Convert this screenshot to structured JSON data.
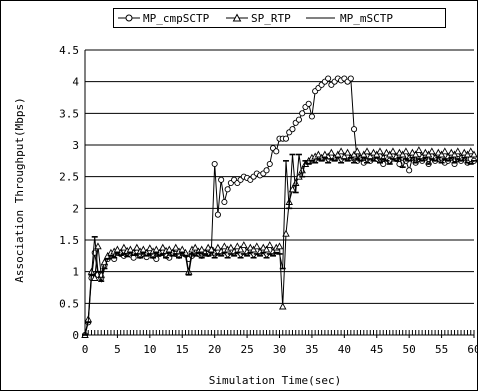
{
  "chart_data": {
    "type": "line",
    "title": "",
    "xlabel": "Simulation Time(sec)",
    "ylabel": "Association Throughput(Mbps)",
    "xlim": [
      0,
      60
    ],
    "ylim": [
      0,
      4.5
    ],
    "xticks": [
      "0",
      "5",
      "10",
      "15",
      "20",
      "25",
      "30",
      "35",
      "40",
      "45",
      "50",
      "55",
      "60"
    ],
    "yticks": [
      "0",
      "0.5",
      "1",
      "1.5",
      "2",
      "2.5",
      "3",
      "3.5",
      "4",
      "4.5"
    ],
    "grid": "horizontal",
    "legend_position": "top",
    "series": [
      {
        "name": "MP_cmpSCTP",
        "marker": "circle",
        "x": [
          0,
          0.5,
          1,
          1.5,
          2,
          2.5,
          3,
          3.5,
          4,
          4.5,
          5,
          5.5,
          6,
          6.5,
          7,
          7.5,
          8,
          8.5,
          9,
          9.5,
          10,
          10.5,
          11,
          11.5,
          12,
          12.5,
          13,
          13.5,
          14,
          14.5,
          15,
          15.5,
          16,
          16.5,
          17,
          17.5,
          18,
          18.5,
          19,
          19.5,
          20,
          20.5,
          21,
          21.5,
          22,
          22.5,
          23,
          23.5,
          24,
          24.5,
          25,
          25.5,
          26,
          26.5,
          27,
          27.5,
          28,
          28.5,
          29,
          29.5,
          30,
          30.5,
          31,
          31.5,
          32,
          32.5,
          33,
          33.5,
          34,
          34.5,
          35,
          35.5,
          36,
          36.5,
          37,
          37.5,
          38,
          38.5,
          39,
          39.5,
          40,
          40.5,
          41,
          41.5,
          42,
          42.5,
          43,
          43.5,
          44,
          44.5,
          45,
          45.5,
          46,
          46.5,
          47,
          47.5,
          48,
          48.5,
          49,
          49.5,
          50,
          50.5,
          51,
          51.5,
          52,
          52.5,
          53,
          53.5,
          54,
          54.5,
          55,
          55.5,
          56,
          56.5,
          57,
          57.5,
          58,
          58.5,
          59,
          59.5,
          60
        ],
        "values": [
          0,
          0.2,
          0.9,
          1.3,
          0.95,
          0.9,
          1.1,
          1.2,
          1.25,
          1.2,
          1.3,
          1.28,
          1.25,
          1.3,
          1.27,
          1.22,
          1.3,
          1.25,
          1.28,
          1.23,
          1.3,
          1.25,
          1.2,
          1.28,
          1.3,
          1.25,
          1.22,
          1.3,
          1.28,
          1.25,
          1.3,
          1.27,
          1.2,
          1.25,
          1.3,
          1.28,
          1.25,
          1.3,
          1.28,
          1.35,
          2.7,
          1.9,
          2.45,
          2.1,
          2.3,
          2.4,
          2.45,
          2.4,
          2.45,
          2.5,
          2.48,
          2.45,
          2.5,
          2.55,
          2.52,
          2.55,
          2.6,
          2.7,
          2.95,
          2.9,
          3.1,
          3.1,
          3.1,
          3.2,
          3.25,
          3.35,
          3.4,
          3.5,
          3.6,
          3.65,
          3.45,
          3.85,
          3.9,
          3.95,
          4.0,
          4.05,
          3.95,
          4.0,
          4.05,
          4.02,
          4.05,
          4.0,
          4.05,
          3.25,
          2.75,
          2.8,
          2.72,
          2.82,
          2.75,
          2.8,
          2.78,
          2.82,
          2.7,
          2.8,
          2.75,
          2.82,
          2.78,
          2.7,
          2.8,
          2.75,
          2.6,
          2.8,
          2.72,
          2.78,
          2.75,
          2.8,
          2.7,
          2.82,
          2.75,
          2.78,
          2.8,
          2.72,
          2.75,
          2.8,
          2.7,
          2.78,
          2.75,
          2.8,
          2.72,
          2.78,
          2.75
        ]
      },
      {
        "name": "SP_RTP",
        "marker": "triangle",
        "x": [
          0,
          0.5,
          1,
          1.5,
          2,
          2.5,
          3,
          3.5,
          4,
          4.5,
          5,
          5.5,
          6,
          6.5,
          7,
          7.5,
          8,
          8.5,
          9,
          9.5,
          10,
          10.5,
          11,
          11.5,
          12,
          12.5,
          13,
          13.5,
          14,
          14.5,
          15,
          15.5,
          16,
          16.5,
          17,
          17.5,
          18,
          18.5,
          19,
          19.5,
          20,
          20.5,
          21,
          21.5,
          22,
          22.5,
          23,
          23.5,
          24,
          24.5,
          25,
          25.5,
          26,
          26.5,
          27,
          27.5,
          28,
          28.5,
          29,
          29.5,
          30,
          30.5,
          31,
          31.5,
          32,
          32.5,
          33,
          33.5,
          34,
          34.5,
          35,
          35.5,
          36,
          36.5,
          37,
          37.5,
          38,
          38.5,
          39,
          39.5,
          40,
          40.5,
          41,
          41.5,
          42,
          42.5,
          43,
          43.5,
          44,
          44.5,
          45,
          45.5,
          46,
          46.5,
          47,
          47.5,
          48,
          48.5,
          49,
          49.5,
          50,
          50.5,
          51,
          51.5,
          52,
          52.5,
          53,
          53.5,
          54,
          54.5,
          55,
          55.5,
          56,
          56.5,
          57,
          57.5,
          58,
          58.5,
          59,
          59.5,
          60
        ],
        "values": [
          0,
          0.25,
          1.0,
          0.9,
          1.4,
          0.95,
          1.15,
          1.25,
          1.3,
          1.32,
          1.35,
          1.3,
          1.38,
          1.33,
          1.35,
          1.3,
          1.38,
          1.32,
          1.35,
          1.3,
          1.37,
          1.32,
          1.35,
          1.3,
          1.38,
          1.33,
          1.35,
          1.3,
          1.38,
          1.32,
          1.35,
          1.3,
          1.0,
          1.35,
          1.38,
          1.32,
          1.35,
          1.3,
          1.38,
          1.35,
          1.3,
          1.38,
          1.32,
          1.4,
          1.35,
          1.38,
          1.32,
          1.4,
          1.35,
          1.42,
          1.32,
          1.38,
          1.35,
          1.4,
          1.32,
          1.38,
          1.35,
          1.42,
          1.32,
          1.38,
          1.4,
          0.45,
          1.6,
          2.1,
          2.3,
          2.4,
          2.5,
          2.6,
          2.7,
          2.75,
          2.8,
          2.82,
          2.85,
          2.8,
          2.85,
          2.82,
          2.88,
          2.8,
          2.85,
          2.9,
          2.82,
          2.88,
          2.8,
          2.85,
          2.9,
          2.8,
          2.85,
          2.9,
          2.82,
          2.88,
          2.85,
          2.9,
          2.8,
          2.88,
          2.85,
          2.9,
          2.82,
          2.88,
          2.85,
          2.9,
          2.8,
          2.88,
          2.85,
          2.92,
          2.82,
          2.88,
          2.85,
          2.9,
          2.8,
          2.88,
          2.85,
          2.9,
          2.82,
          2.88,
          2.85,
          2.9,
          2.8,
          2.88,
          2.85,
          2.9,
          2.85
        ]
      },
      {
        "name": "MP_mSCTP",
        "marker": "dash",
        "x": [
          0,
          0.5,
          1,
          1.5,
          2,
          2.5,
          3,
          3.5,
          4,
          4.5,
          5,
          5.5,
          6,
          6.5,
          7,
          7.5,
          8,
          8.5,
          9,
          9.5,
          10,
          10.5,
          11,
          11.5,
          12,
          12.5,
          13,
          13.5,
          14,
          14.5,
          15,
          15.5,
          16,
          16.5,
          17,
          17.5,
          18,
          18.5,
          19,
          19.5,
          20,
          20.5,
          21,
          21.5,
          22,
          22.5,
          23,
          23.5,
          24,
          24.5,
          25,
          25.5,
          26,
          26.5,
          27,
          27.5,
          28,
          28.5,
          29,
          29.5,
          30,
          30.5,
          31,
          31.5,
          32,
          32.5,
          33,
          33.5,
          34,
          34.5,
          35,
          35.5,
          36,
          36.5,
          37,
          37.5,
          38,
          38.5,
          39,
          39.5,
          40,
          40.5,
          41,
          41.5,
          42,
          42.5,
          43,
          43.5,
          44,
          44.5,
          45,
          45.5,
          46,
          46.5,
          47,
          47.5,
          48,
          48.5,
          49,
          49.5,
          50,
          50.5,
          51,
          51.5,
          52,
          52.5,
          53,
          53.5,
          54,
          54.5,
          55,
          55.5,
          56,
          56.5,
          57,
          57.5,
          58,
          58.5,
          59,
          59.5,
          60
        ],
        "values": [
          0,
          0.2,
          0.95,
          1.55,
          1.0,
          0.85,
          1.05,
          1.2,
          1.25,
          1.22,
          1.3,
          1.26,
          1.28,
          1.24,
          1.3,
          1.26,
          1.28,
          1.22,
          1.3,
          1.25,
          1.28,
          1.22,
          1.3,
          1.26,
          1.28,
          1.22,
          1.3,
          1.25,
          1.28,
          1.22,
          1.3,
          1.25,
          0.95,
          1.28,
          1.25,
          1.3,
          1.22,
          1.28,
          1.25,
          1.3,
          1.22,
          1.28,
          1.25,
          1.3,
          1.22,
          1.28,
          1.25,
          1.3,
          1.22,
          1.28,
          1.25,
          1.3,
          1.22,
          1.28,
          1.25,
          1.3,
          1.22,
          1.28,
          1.25,
          1.3,
          1.28,
          1.05,
          2.75,
          2.0,
          2.85,
          2.25,
          2.85,
          2.5,
          2.75,
          2.7,
          2.75,
          2.72,
          2.78,
          2.75,
          2.8,
          2.72,
          2.78,
          2.75,
          2.8,
          2.72,
          2.78,
          2.75,
          2.8,
          2.72,
          2.78,
          2.75,
          2.8,
          2.72,
          2.78,
          2.75,
          2.8,
          2.72,
          2.78,
          2.75,
          2.7,
          2.78,
          2.75,
          2.8,
          2.65,
          2.78,
          2.75,
          2.8,
          2.72,
          2.78,
          2.75,
          2.8,
          2.7,
          2.78,
          2.75,
          2.8,
          2.72,
          2.78,
          2.75,
          2.8,
          2.72,
          2.78,
          2.75,
          2.8,
          2.72,
          2.7,
          2.75
        ]
      }
    ]
  }
}
